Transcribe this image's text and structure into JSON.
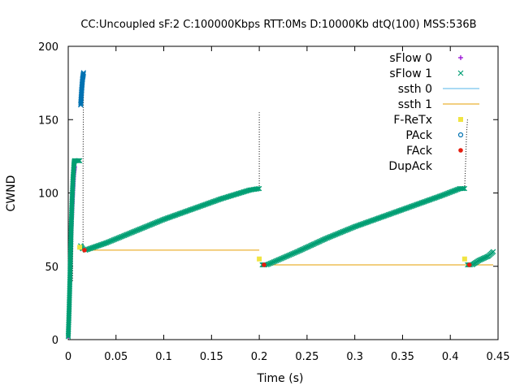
{
  "chart_data": {
    "type": "scatter",
    "title": "CC:Uncoupled  sF:2 C:100000Kbps  RTT:0Ms  D:10000Kb  dtQ(100)  MSS:536B",
    "xlabel": "Time (s)",
    "ylabel": "CWND",
    "xlim": [
      0,
      0.45
    ],
    "ylim": [
      0,
      200
    ],
    "xticks": [
      "0",
      "0.05",
      "0.1",
      "0.15",
      "0.2",
      "0.25",
      "0.3",
      "0.35",
      "0.4",
      "0.45"
    ],
    "xtick_values": [
      0,
      0.05,
      0.1,
      0.15,
      0.2,
      0.25,
      0.3,
      0.35,
      0.4,
      0.45
    ],
    "yticks": [
      "0",
      "50",
      "100",
      "150",
      "200"
    ],
    "ytick_values": [
      0,
      50,
      100,
      150,
      200
    ],
    "grid": false,
    "legend_position": "top-right",
    "legend": [
      {
        "label": "sFlow 0",
        "marker": "plus",
        "color": "#9400d3"
      },
      {
        "label": "sFlow 1",
        "marker": "cross",
        "color": "#009e73"
      },
      {
        "label": "ssth 0",
        "marker": "line",
        "color": "#56b4e9"
      },
      {
        "label": "ssth 1",
        "marker": "line",
        "color": "#e69f00"
      },
      {
        "label": "F-ReTx",
        "marker": "square",
        "color": "#f0e442"
      },
      {
        "label": "PAck",
        "marker": "circle",
        "color": "#0072b2"
      },
      {
        "label": "FAck",
        "marker": "dot",
        "color": "#e51e10"
      },
      {
        "label": "DupAck",
        "marker": "none",
        "color": "#000000"
      }
    ],
    "series": [
      {
        "name": "sFlow 0",
        "color": "#9400d3",
        "segments": [
          {
            "kind": "slowstart",
            "points": [
              [
                0.0,
                2
              ],
              [
                0.001,
                20
              ],
              [
                0.002,
                45
              ],
              [
                0.003,
                70
              ],
              [
                0.004,
                85
              ],
              [
                0.005,
                100
              ],
              [
                0.006,
                112
              ],
              [
                0.007,
                118
              ]
            ]
          }
        ]
      },
      {
        "name": "sFlow 1",
        "color": "#009e73",
        "segments": [
          {
            "kind": "slowstart",
            "points": [
              [
                0.0,
                2
              ],
              [
                0.001,
                22
              ],
              [
                0.002,
                48
              ],
              [
                0.003,
                75
              ],
              [
                0.004,
                95
              ],
              [
                0.005,
                110
              ],
              [
                0.006,
                120
              ],
              [
                0.0065,
                122
              ],
              [
                0.007,
                122
              ],
              [
                0.008,
                122
              ],
              [
                0.009,
                122
              ],
              [
                0.01,
                122
              ],
              [
                0.011,
                122
              ],
              [
                0.012,
                122
              ]
            ]
          },
          {
            "kind": "recovery",
            "points": [
              [
                0.013,
                64
              ],
              [
                0.015,
                62
              ]
            ]
          },
          {
            "kind": "avoidance",
            "points": [
              [
                0.018,
                61
              ],
              [
                0.04,
                66
              ],
              [
                0.07,
                74
              ],
              [
                0.1,
                82
              ],
              [
                0.13,
                89
              ],
              [
                0.16,
                96
              ],
              [
                0.19,
                102
              ],
              [
                0.2,
                103
              ]
            ]
          },
          {
            "kind": "recovery",
            "points": [
              [
                0.203,
                51
              ],
              [
                0.206,
                51
              ]
            ]
          },
          {
            "kind": "avoidance",
            "points": [
              [
                0.208,
                51
              ],
              [
                0.24,
                60
              ],
              [
                0.27,
                69
              ],
              [
                0.3,
                77
              ],
              [
                0.33,
                84
              ],
              [
                0.36,
                91
              ],
              [
                0.39,
                98
              ],
              [
                0.41,
                103
              ],
              [
                0.415,
                103
              ]
            ]
          },
          {
            "kind": "recovery",
            "points": [
              [
                0.418,
                51
              ],
              [
                0.421,
                51
              ]
            ]
          },
          {
            "kind": "avoidance",
            "points": [
              [
                0.423,
                51
              ],
              [
                0.43,
                54
              ],
              [
                0.44,
                57
              ],
              [
                0.445,
                60
              ]
            ]
          }
        ]
      },
      {
        "name": "sFlow 0 (upper)",
        "color": "#0072b2",
        "segments": [
          {
            "kind": "slowstart",
            "points": [
              [
                0.013,
                160
              ],
              [
                0.0135,
                165
              ],
              [
                0.014,
                170
              ],
              [
                0.0145,
                174
              ],
              [
                0.015,
                178
              ],
              [
                0.0155,
                180
              ],
              [
                0.016,
                182
              ]
            ]
          }
        ]
      }
    ],
    "ssth_1": {
      "color": "#e69f00",
      "segments": [
        [
          [
            0.013,
            61
          ],
          [
            0.2,
            61
          ]
        ],
        [
          [
            0.205,
            51
          ],
          [
            0.445,
            51
          ]
        ]
      ]
    },
    "f_retx": {
      "color": "#f0e442",
      "points": [
        [
          0.012,
          63
        ],
        [
          0.2,
          55
        ],
        [
          0.415,
          55
        ]
      ]
    },
    "f_ack": {
      "color": "#e51e10",
      "points": [
        [
          0.017,
          61
        ],
        [
          0.205,
          51
        ],
        [
          0.42,
          51
        ]
      ]
    },
    "dupack": {
      "color": "#000000",
      "traces": [
        [
          [
            0.0045,
            40
          ],
          [
            0.005,
            80
          ],
          [
            0.0055,
            100
          ],
          [
            0.006,
            118
          ]
        ],
        [
          [
            0.0155,
            60
          ],
          [
            0.0155,
            120
          ],
          [
            0.016,
            178
          ]
        ],
        [
          [
            0.2,
            103
          ],
          [
            0.2,
            120
          ],
          [
            0.2,
            140
          ],
          [
            0.2,
            155
          ]
        ],
        [
          [
            0.415,
            103
          ],
          [
            0.416,
            120
          ],
          [
            0.417,
            140
          ],
          [
            0.418,
            150
          ]
        ]
      ]
    }
  }
}
